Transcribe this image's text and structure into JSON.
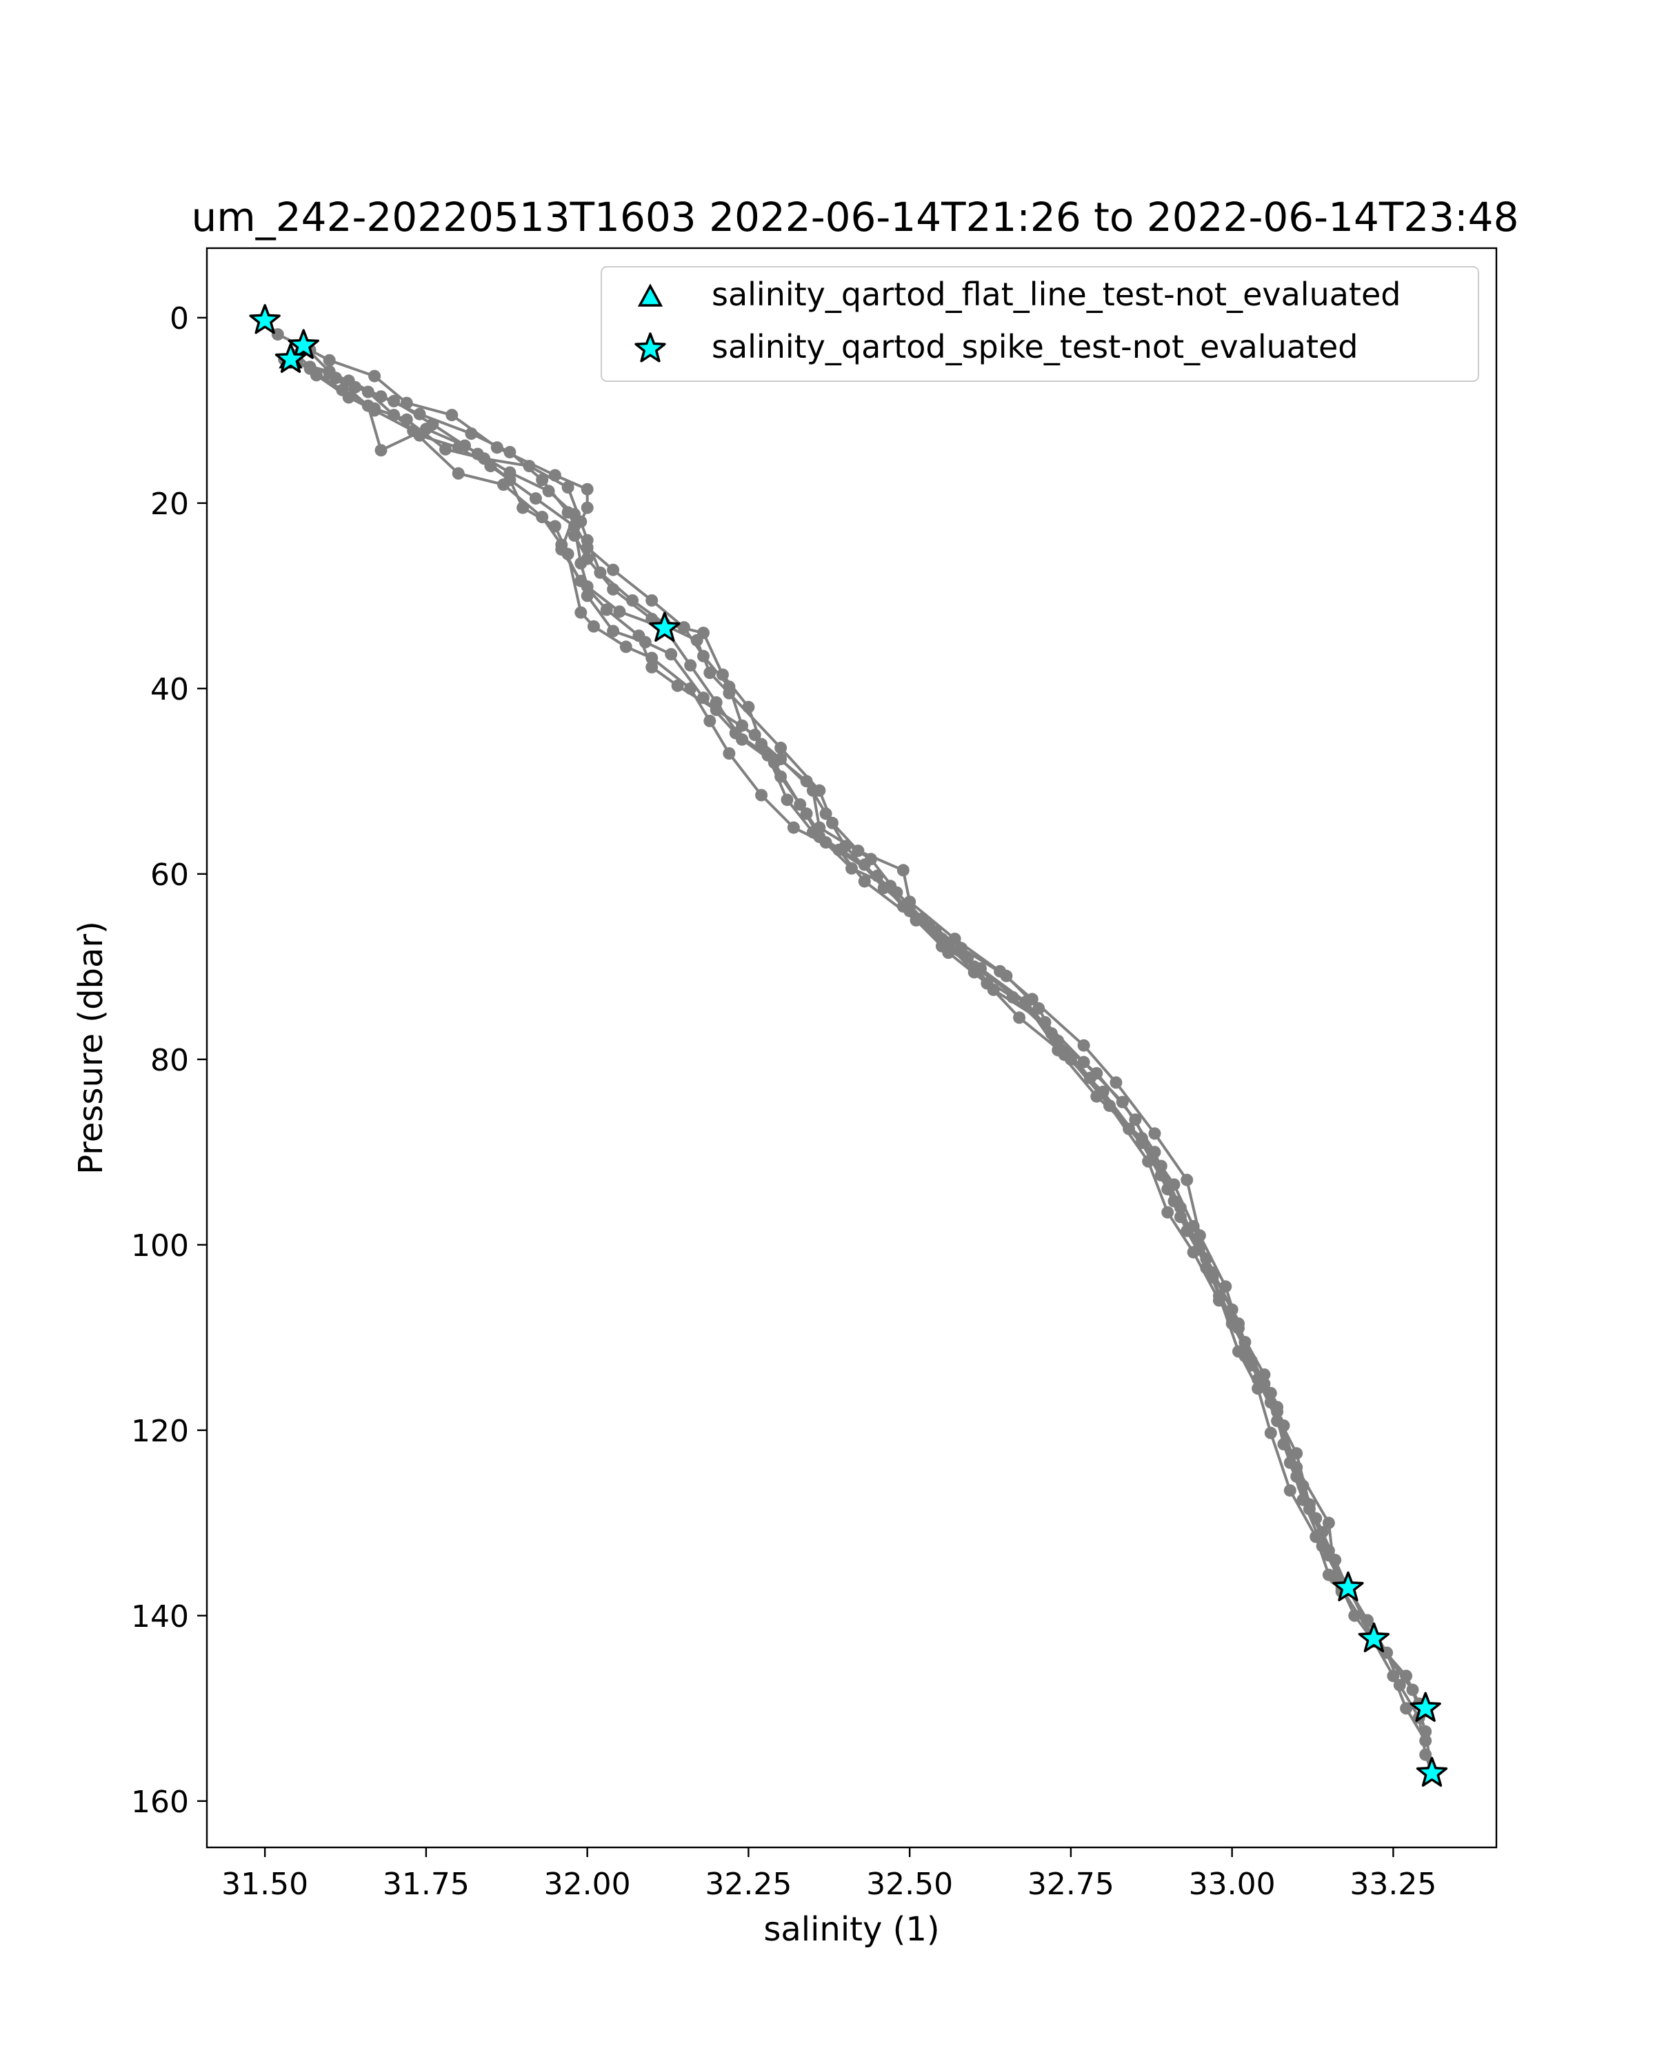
{
  "chart_data": {
    "type": "scatter",
    "title": "um_242-20220513T1603 2022-06-14T21:26 to 2022-06-14T23:48",
    "xlabel": "salinity (1)",
    "ylabel": "Pressure (dbar)",
    "xlim": [
      31.41,
      33.41
    ],
    "ylim": [
      -7.5,
      165
    ],
    "y_inverted": true,
    "grid": false,
    "legend_position": "top-right",
    "x_ticks": [
      "31.50",
      "31.75",
      "32.00",
      "32.25",
      "32.50",
      "32.75",
      "33.00",
      "33.25"
    ],
    "x_tick_values": [
      31.5,
      31.75,
      32.0,
      32.25,
      32.5,
      32.75,
      33.0,
      33.25
    ],
    "y_ticks": [
      "0",
      "20",
      "40",
      "60",
      "80",
      "100",
      "120",
      "140",
      "160"
    ],
    "y_tick_values": [
      0,
      20,
      40,
      60,
      80,
      100,
      120,
      140,
      160
    ],
    "colors": {
      "profile_line": "#808080",
      "flag_marker_fill": "#00ffff",
      "flag_marker_edge": "#000000",
      "legend_border": "#cccccc"
    },
    "profiles": [
      [
        [
          31.5,
          0.3
        ],
        [
          31.52,
          1.8
        ],
        [
          31.57,
          3.5
        ],
        [
          31.6,
          4.6
        ],
        [
          31.67,
          6.3
        ],
        [
          31.72,
          9.2
        ],
        [
          31.79,
          10.5
        ],
        [
          31.86,
          14.0
        ],
        [
          31.95,
          17.0
        ],
        [
          32.0,
          18.5
        ],
        [
          32.0,
          20.5
        ],
        [
          31.98,
          23.5
        ],
        [
          32.0,
          26.0
        ],
        [
          32.04,
          29.3
        ],
        [
          32.1,
          32.5
        ],
        [
          32.17,
          34.8
        ],
        [
          32.19,
          38.3
        ],
        [
          32.22,
          40.5
        ],
        [
          32.3,
          46.4
        ],
        [
          32.36,
          51.0
        ],
        [
          32.38,
          54.5
        ],
        [
          32.42,
          57.5
        ],
        [
          32.49,
          59.6
        ],
        [
          32.5,
          63.0
        ],
        [
          32.57,
          67.0
        ],
        [
          32.64,
          70.5
        ],
        [
          32.69,
          73.5
        ],
        [
          32.77,
          78.5
        ],
        [
          32.82,
          82.5
        ],
        [
          32.88,
          88.0
        ],
        [
          32.93,
          93.0
        ],
        [
          32.95,
          99.0
        ],
        [
          32.99,
          104.5
        ],
        [
          33.01,
          109.0
        ],
        [
          33.05,
          114.0
        ],
        [
          33.07,
          118.0
        ],
        [
          33.1,
          124.0
        ],
        [
          33.15,
          130.0
        ],
        [
          33.16,
          136.0
        ],
        [
          33.22,
          142.5
        ],
        [
          33.28,
          148.0
        ],
        [
          33.3,
          152.5
        ],
        [
          33.31,
          157.0
        ]
      ],
      [
        [
          31.55,
          4.0
        ],
        [
          31.57,
          5.3
        ],
        [
          31.63,
          6.8
        ],
        [
          31.68,
          8.5
        ],
        [
          31.74,
          10.4
        ],
        [
          31.82,
          12.5
        ],
        [
          31.88,
          14.5
        ],
        [
          31.93,
          17.5
        ],
        [
          31.97,
          21.0
        ],
        [
          32.0,
          24.8
        ],
        [
          32.04,
          27.2
        ],
        [
          32.1,
          30.5
        ],
        [
          32.15,
          33.4
        ],
        [
          32.18,
          36.5
        ],
        [
          32.22,
          39.8
        ],
        [
          32.24,
          44.0
        ],
        [
          32.3,
          47.6
        ],
        [
          32.35,
          51.0
        ],
        [
          32.36,
          55.0
        ],
        [
          32.44,
          58.4
        ],
        [
          32.48,
          62.0
        ],
        [
          32.52,
          64.8
        ],
        [
          32.58,
          68.0
        ],
        [
          32.65,
          71.0
        ],
        [
          32.7,
          74.5
        ],
        [
          32.74,
          79.5
        ],
        [
          32.8,
          83.5
        ],
        [
          32.86,
          89.0
        ],
        [
          32.9,
          94.0
        ],
        [
          32.93,
          98.5
        ],
        [
          32.97,
          103.5
        ],
        [
          33.0,
          108.5
        ],
        [
          33.03,
          112.5
        ],
        [
          33.07,
          117.5
        ],
        [
          33.09,
          123.5
        ],
        [
          33.12,
          128.5
        ],
        [
          33.15,
          133.0
        ],
        [
          33.18,
          137.0
        ],
        [
          33.22,
          142.5
        ],
        [
          33.27,
          146.5
        ],
        [
          33.29,
          149.5
        ],
        [
          33.3,
          150.3
        ]
      ],
      [
        [
          31.53,
          4.5
        ],
        [
          31.6,
          5.8
        ],
        [
          31.66,
          8.0
        ],
        [
          31.7,
          10.5
        ],
        [
          31.74,
          12.7
        ],
        [
          31.8,
          14.0
        ],
        [
          31.85,
          16.0
        ],
        [
          31.92,
          19.5
        ],
        [
          31.98,
          22.5
        ],
        [
          31.99,
          26.5
        ],
        [
          32.0,
          29.0
        ],
        [
          32.05,
          31.7
        ],
        [
          32.12,
          33.5
        ],
        [
          32.16,
          37.5
        ],
        [
          32.2,
          41.5
        ],
        [
          32.24,
          45.5
        ],
        [
          32.29,
          48.0
        ],
        [
          32.33,
          52.5
        ],
        [
          32.36,
          56.0
        ],
        [
          32.41,
          59.4
        ],
        [
          32.47,
          61.3
        ],
        [
          32.53,
          65.6
        ],
        [
          32.59,
          69.0
        ],
        [
          32.63,
          72.5
        ],
        [
          32.71,
          76.0
        ],
        [
          32.77,
          80.3
        ],
        [
          32.83,
          84.6
        ],
        [
          32.88,
          90.0
        ],
        [
          32.91,
          95.3
        ],
        [
          32.95,
          100.2
        ],
        [
          32.98,
          105.5
        ],
        [
          33.01,
          111.5
        ],
        [
          33.04,
          115.5
        ],
        [
          33.06,
          120.3
        ],
        [
          33.09,
          126.5
        ],
        [
          33.13,
          131.5
        ],
        [
          33.15,
          135.6
        ],
        [
          33.17,
          137.4
        ]
      ],
      [
        [
          31.56,
          3.0
        ],
        [
          31.61,
          6.5
        ],
        [
          31.66,
          9.5
        ],
        [
          31.68,
          14.3
        ],
        [
          31.75,
          12.0
        ],
        [
          31.81,
          13.8
        ],
        [
          31.88,
          16.7
        ],
        [
          31.94,
          18.7
        ],
        [
          31.98,
          21.2
        ],
        [
          31.96,
          25.0
        ],
        [
          31.99,
          28.4
        ],
        [
          32.03,
          31.5
        ],
        [
          32.08,
          34.3
        ],
        [
          32.1,
          37.7
        ],
        [
          32.14,
          39.7
        ],
        [
          32.2,
          42.3
        ],
        [
          32.26,
          45.0
        ],
        [
          32.3,
          49.5
        ],
        [
          32.34,
          53.5
        ],
        [
          32.37,
          56.6
        ],
        [
          32.45,
          60.2
        ],
        [
          32.5,
          64.0
        ],
        [
          32.55,
          67.8
        ],
        [
          32.61,
          70.2
        ],
        [
          32.68,
          73.8
        ],
        [
          32.73,
          78.0
        ],
        [
          32.79,
          81.5
        ],
        [
          32.85,
          86.5
        ],
        [
          32.89,
          92.5
        ],
        [
          32.92,
          97.0
        ],
        [
          32.96,
          101.5
        ],
        [
          33.0,
          107.0
        ],
        [
          33.02,
          112.0
        ],
        [
          33.06,
          116.0
        ],
        [
          33.08,
          121.5
        ],
        [
          33.11,
          127.5
        ],
        [
          33.14,
          132.5
        ],
        [
          33.17,
          136.5
        ]
      ],
      [
        [
          31.54,
          4.8
        ],
        [
          31.6,
          6.0
        ],
        [
          31.64,
          7.5
        ],
        [
          31.7,
          9.0
        ],
        [
          31.76,
          11.5
        ],
        [
          31.83,
          14.7
        ],
        [
          31.88,
          17.5
        ],
        [
          31.9,
          20.5
        ],
        [
          31.95,
          22.5
        ],
        [
          31.97,
          25.5
        ],
        [
          31.99,
          31.8
        ],
        [
          32.01,
          33.3
        ],
        [
          32.06,
          35.5
        ],
        [
          32.1,
          36.7
        ],
        [
          32.16,
          40.0
        ],
        [
          32.19,
          43.5
        ],
        [
          32.22,
          47.0
        ],
        [
          32.27,
          51.5
        ],
        [
          32.32,
          55.0
        ],
        [
          32.39,
          57.4
        ],
        [
          32.43,
          60.8
        ],
        [
          32.51,
          65.0
        ],
        [
          32.56,
          68.5
        ],
        [
          32.62,
          71.8
        ],
        [
          32.67,
          75.5
        ],
        [
          32.75,
          80.0
        ],
        [
          32.81,
          85.0
        ],
        [
          32.87,
          91.0
        ],
        [
          32.9,
          96.5
        ],
        [
          32.94,
          100.8
        ],
        [
          32.98,
          106.0
        ],
        [
          33.02,
          110.5
        ],
        [
          33.05,
          115.0
        ],
        [
          33.08,
          119.5
        ],
        [
          33.1,
          125.0
        ],
        [
          33.13,
          129.5
        ],
        [
          33.16,
          134.0
        ],
        [
          33.18,
          137.2
        ]
      ],
      [
        [
          31.57,
          5.5
        ],
        [
          31.62,
          7.8
        ],
        [
          31.67,
          9.8
        ],
        [
          31.72,
          11.0
        ],
        [
          31.78,
          14.2
        ],
        [
          31.84,
          15.2
        ],
        [
          31.91,
          16.0
        ],
        [
          31.97,
          18.3
        ],
        [
          31.99,
          22.0
        ],
        [
          32.0,
          24.0
        ],
        [
          32.02,
          27.5
        ],
        [
          32.07,
          30.5
        ],
        [
          32.12,
          33.0
        ],
        [
          32.18,
          34.0
        ],
        [
          32.21,
          38.5
        ],
        [
          32.25,
          42.0
        ],
        [
          32.27,
          46.0
        ],
        [
          32.34,
          50.0
        ],
        [
          32.37,
          53.5
        ],
        [
          32.4,
          57.0
        ],
        [
          32.46,
          61.5
        ],
        [
          32.54,
          66.2
        ],
        [
          32.6,
          70.6
        ],
        [
          32.66,
          73.3
        ],
        [
          32.72,
          77.2
        ],
        [
          32.78,
          82.0
        ],
        [
          32.84,
          87.5
        ],
        [
          32.89,
          91.5
        ],
        [
          32.92,
          96.0
        ],
        [
          32.96,
          102.5
        ],
        [
          33.0,
          108.0
        ],
        [
          33.03,
          113.0
        ],
        [
          33.06,
          117.0
        ],
        [
          33.1,
          122.5
        ],
        [
          33.12,
          128.0
        ],
        [
          33.15,
          133.5
        ],
        [
          33.21,
          140.5
        ],
        [
          33.24,
          144.0
        ],
        [
          33.26,
          147.5
        ],
        [
          33.29,
          151.0
        ],
        [
          33.3,
          155.0
        ],
        [
          33.31,
          157.0
        ]
      ],
      [
        [
          31.55,
          4.5
        ],
        [
          31.58,
          6.2
        ],
        [
          31.63,
          8.6
        ],
        [
          31.67,
          10.0
        ],
        [
          31.73,
          12.2
        ],
        [
          31.8,
          16.8
        ],
        [
          31.87,
          18.0
        ],
        [
          31.93,
          21.5
        ],
        [
          31.96,
          24.5
        ],
        [
          32.0,
          30.0
        ],
        [
          32.04,
          33.8
        ],
        [
          32.09,
          35.0
        ],
        [
          32.13,
          36.3
        ],
        [
          32.18,
          41.0
        ],
        [
          32.23,
          44.8
        ],
        [
          32.28,
          47.2
        ],
        [
          32.31,
          52.0
        ],
        [
          32.35,
          55.5
        ],
        [
          32.43,
          59.0
        ],
        [
          32.49,
          63.5
        ],
        [
          32.55,
          67.0
        ],
        [
          32.6,
          70.0
        ],
        [
          32.68,
          74.0
        ],
        [
          32.73,
          79.0
        ],
        [
          32.79,
          84.0
        ],
        [
          32.86,
          88.5
        ],
        [
          32.91,
          93.5
        ],
        [
          32.94,
          98.0
        ],
        [
          32.97,
          103.0
        ],
        [
          33.01,
          108.5
        ],
        [
          33.04,
          114.5
        ],
        [
          33.07,
          119.0
        ],
        [
          33.11,
          126.0
        ],
        [
          33.14,
          131.0
        ],
        [
          33.17,
          137.0
        ],
        [
          33.19,
          140.0
        ],
        [
          33.22,
          142.8
        ],
        [
          33.25,
          146.5
        ],
        [
          33.27,
          150.0
        ],
        [
          33.3,
          153.5
        ]
      ]
    ],
    "series": [
      {
        "name": "salinity_qartod_flat_line_test-not_evaluated",
        "marker": "triangle",
        "points": [
          [
            31.54,
            4.5
          ]
        ]
      },
      {
        "name": "salinity_qartod_spike_test-not_evaluated",
        "marker": "star",
        "points": [
          [
            31.5,
            0.3
          ],
          [
            31.56,
            3.0
          ],
          [
            31.54,
            4.5
          ],
          [
            32.12,
            33.5
          ],
          [
            33.18,
            137.0
          ],
          [
            33.22,
            142.5
          ],
          [
            33.3,
            150.0
          ],
          [
            33.31,
            157.0
          ]
        ]
      }
    ]
  }
}
